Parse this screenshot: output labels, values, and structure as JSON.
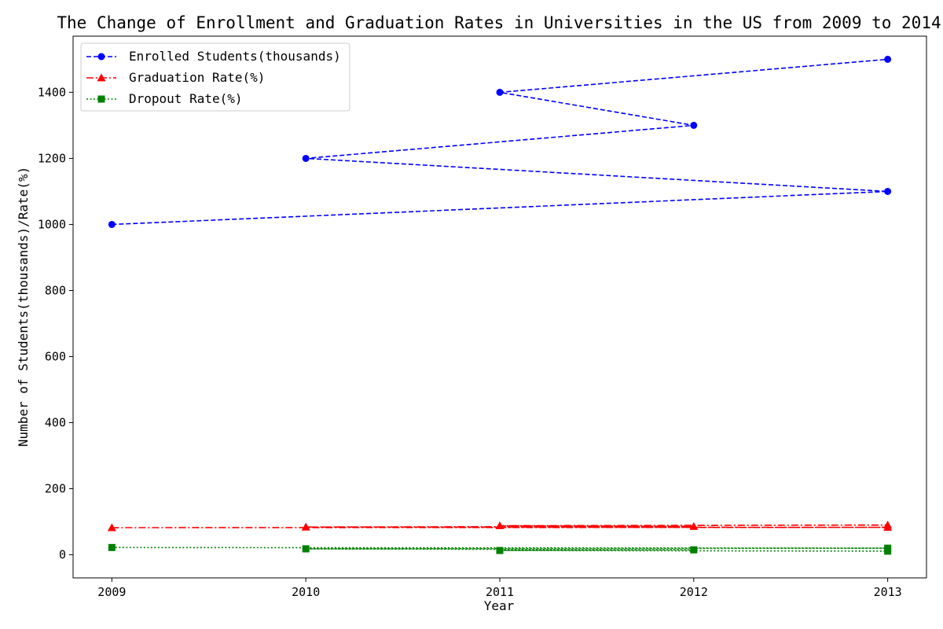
{
  "chart_data": {
    "type": "line",
    "title": "The Change of Enrollment and Graduation Rates in Universities in the US from 2009 to 2014",
    "xlabel": "Year",
    "ylabel": "Number of Students(thousands)/Rate(%)",
    "x_ticks": [
      "2009",
      "2010",
      "2011",
      "2012",
      "2013"
    ],
    "y_ticks": [
      0,
      200,
      400,
      600,
      800,
      1000,
      1200,
      1400
    ],
    "xlim": [
      2008.8,
      2013.2
    ],
    "ylim": [
      -70,
      1570
    ],
    "grid": false,
    "legend_position": "top-left",
    "series": [
      {
        "name": "Enrolled Students(thousands)",
        "color": "#0000ff",
        "marker": "circle",
        "linestyle": "dashed",
        "x": [
          2009,
          2013,
          2010,
          2012,
          2011,
          2013
        ],
        "y": [
          1000,
          1100,
          1200,
          1300,
          1400,
          1500
        ]
      },
      {
        "name": "Graduation Rate(%)",
        "color": "#ff0000",
        "marker": "triangle",
        "linestyle": "dashdot",
        "x": [
          2009,
          2013,
          2010,
          2012,
          2011,
          2013
        ],
        "y": [
          82,
          83,
          84,
          86,
          88,
          90
        ]
      },
      {
        "name": "Dropout Rate(%)",
        "color": "#008000",
        "marker": "square",
        "linestyle": "dotted",
        "x": [
          2009,
          2013,
          2010,
          2012,
          2011,
          2013
        ],
        "y": [
          22,
          20,
          18,
          15,
          13,
          11
        ]
      }
    ]
  }
}
